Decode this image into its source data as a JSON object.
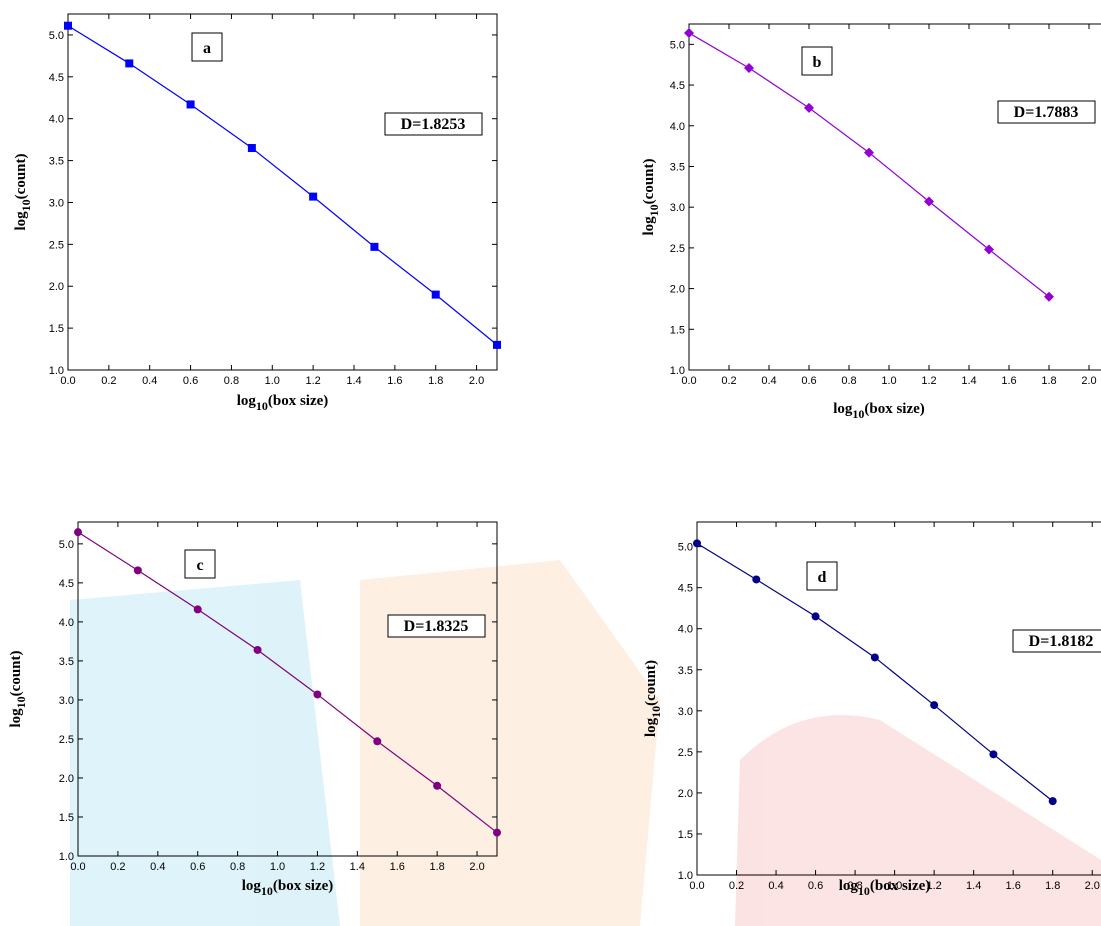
{
  "chart_data": [
    {
      "type": "line",
      "marker": "square",
      "color": "#0000ff",
      "x": [
        0,
        0.3,
        0.6,
        0.9,
        1.2,
        1.5,
        1.8,
        2.1
      ],
      "values": [
        5.11,
        4.66,
        4.17,
        3.65,
        3.07,
        2.47,
        1.9,
        1.3
      ],
      "xlim": [
        0,
        2.1
      ],
      "ylim": [
        1,
        5.25
      ],
      "xticks": [
        {
          "value": 0,
          "label": "0.0"
        },
        0.2,
        0.4,
        0.6,
        0.8,
        {
          "value": 1,
          "label": "1.0"
        },
        1.2,
        1.4,
        1.6,
        1.8,
        {
          "value": 2,
          "label": "2.0"
        }
      ],
      "yticks": [
        {
          "value": 1,
          "label": "1.0"
        },
        1.5,
        {
          "value": 2,
          "label": "2.0"
        },
        2.5,
        {
          "value": 3,
          "label": "3.0"
        },
        3.5,
        {
          "value": 4,
          "label": "4.0"
        },
        4.5,
        {
          "value": 5,
          "label": "5.0"
        }
      ],
      "xlabel": [
        "log",
        "10",
        "(box size)"
      ],
      "ylabel": [
        "log",
        "10",
        "(count)"
      ],
      "annotations": [
        "a",
        "D=1.8253"
      ]
    },
    {
      "type": "line",
      "marker": "diamond",
      "color": "#9400d3",
      "x": [
        0,
        0.3,
        0.6,
        0.9,
        1.2,
        1.5,
        1.8
      ],
      "values": [
        5.14,
        4.71,
        4.22,
        3.67,
        3.07,
        2.48,
        1.9
      ],
      "xlim": [
        0,
        2.1
      ],
      "ylim": [
        1,
        5.25
      ],
      "xticks": [
        {
          "value": 0,
          "label": "0.0"
        },
        0.2,
        0.4,
        0.6,
        0.8,
        {
          "value": 1,
          "label": "1.0"
        },
        1.2,
        1.4,
        1.6,
        1.8,
        {
          "value": 2,
          "label": "2.0"
        }
      ],
      "yticks": [
        {
          "value": 1,
          "label": "1.0"
        },
        1.5,
        {
          "value": 2,
          "label": "2.0"
        },
        2.5,
        {
          "value": 3,
          "label": "3.0"
        },
        3.5,
        {
          "value": 4,
          "label": "4.0"
        },
        4.5,
        {
          "value": 5,
          "label": "5.0"
        }
      ],
      "xlabel": [
        "log",
        "10",
        "(box size)"
      ],
      "ylabel": [
        "log",
        "10",
        "(count)"
      ],
      "annotations": [
        "b",
        "D=1.7883"
      ]
    },
    {
      "type": "line",
      "marker": "circle",
      "color": "#800080",
      "x": [
        0,
        0.3,
        0.6,
        0.9,
        1.2,
        1.5,
        1.8,
        2.1
      ],
      "values": [
        5.15,
        4.66,
        4.16,
        3.64,
        3.07,
        2.47,
        1.9,
        1.3
      ],
      "xlim": [
        0,
        2.1
      ],
      "ylim": [
        1,
        5.28
      ],
      "xticks": [
        {
          "value": 0,
          "label": "0.0"
        },
        0.2,
        0.4,
        0.6,
        0.8,
        {
          "value": 1,
          "label": "1.0"
        },
        1.2,
        1.4,
        1.6,
        1.8,
        {
          "value": 2,
          "label": "2.0"
        }
      ],
      "yticks": [
        {
          "value": 1,
          "label": "1.0"
        },
        1.5,
        {
          "value": 2,
          "label": "2.0"
        },
        2.5,
        {
          "value": 3,
          "label": "3.0"
        },
        3.5,
        {
          "value": 4,
          "label": "4.0"
        },
        4.5,
        {
          "value": 5,
          "label": "5.0"
        }
      ],
      "xlabel": [
        "log",
        "10",
        "(box size)"
      ],
      "ylabel": [
        "log",
        "10",
        "(count)"
      ],
      "annotations": [
        "c",
        "D=1.8325"
      ]
    },
    {
      "type": "line",
      "marker": "circle",
      "color": "#00008b",
      "x": [
        0,
        0.3,
        0.6,
        0.9,
        1.2,
        1.5,
        1.8
      ],
      "values": [
        5.04,
        4.6,
        4.15,
        3.65,
        3.07,
        2.47,
        1.9
      ],
      "xlim": [
        0,
        2.1
      ],
      "ylim": [
        1,
        5.3
      ],
      "xticks": [
        {
          "value": 0,
          "label": "0.0"
        },
        0.2,
        0.4,
        0.6,
        0.8,
        {
          "value": 1,
          "label": "1.0"
        },
        1.2,
        1.4,
        1.6,
        1.8,
        {
          "value": 2,
          "label": "2.0"
        }
      ],
      "yticks": [
        {
          "value": 1,
          "label": "1.0"
        },
        1.5,
        {
          "value": 2,
          "label": "2.0"
        },
        2.5,
        {
          "value": 3,
          "label": "3.0"
        },
        3.5,
        {
          "value": 4,
          "label": "4.0"
        },
        4.5,
        {
          "value": 5,
          "label": "5.0"
        }
      ],
      "xlabel": [
        "log",
        "10",
        "(box size)"
      ],
      "ylabel": [
        "log",
        "10",
        "(count)"
      ],
      "annotations": [
        "d",
        "D=1.8182"
      ]
    }
  ]
}
